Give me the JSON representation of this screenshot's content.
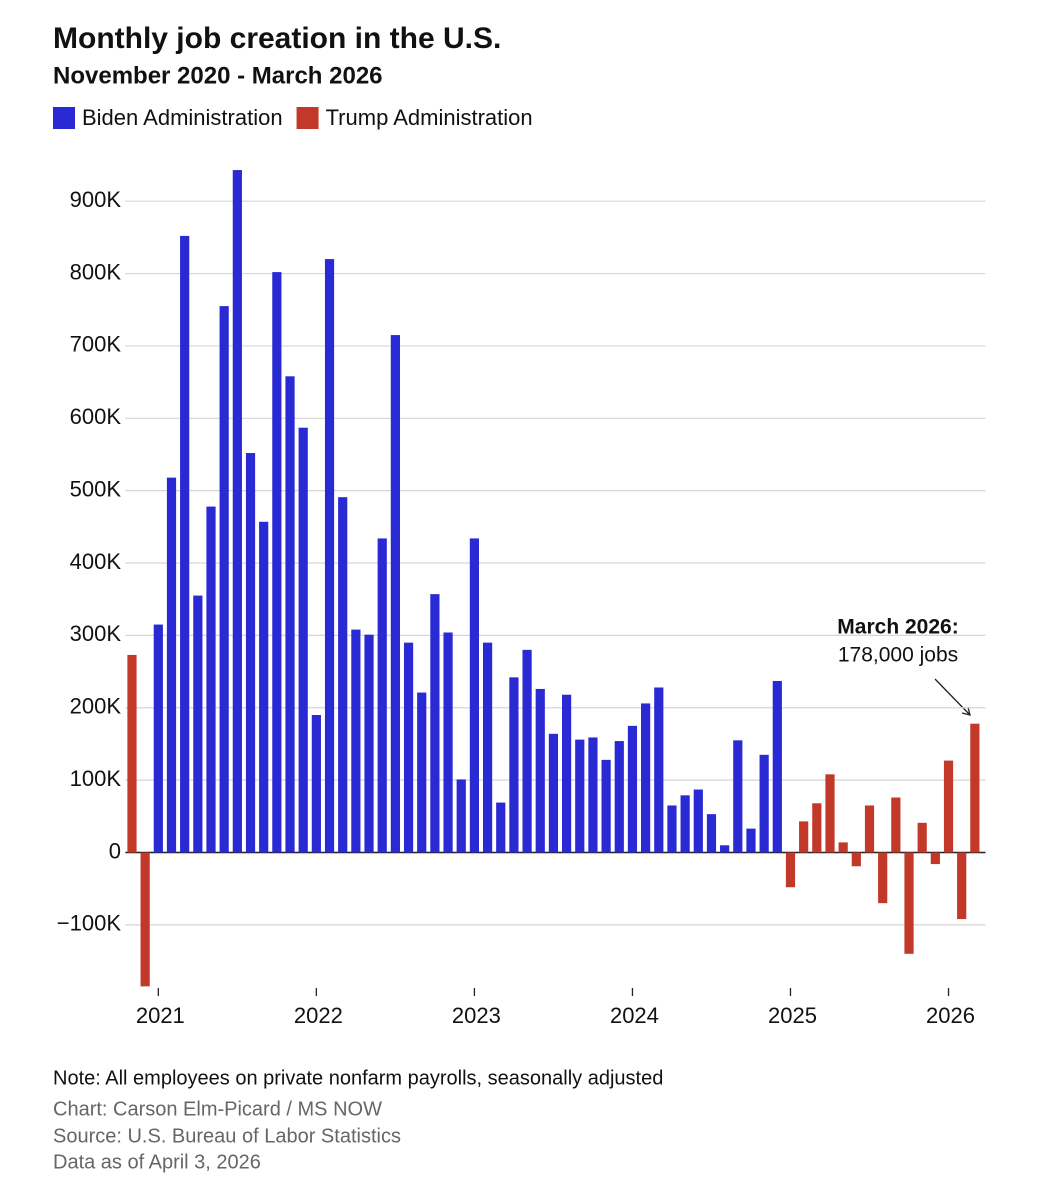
{
  "chart_data": {
    "type": "bar",
    "title": "Monthly job creation in the U.S.",
    "subtitle": "November 2020 - March 2026",
    "categories": [
      null,
      null,
      "2021",
      null,
      null,
      null,
      null,
      null,
      null,
      null,
      null,
      null,
      null,
      null,
      "2022",
      null,
      null,
      null,
      null,
      null,
      null,
      null,
      null,
      null,
      null,
      null,
      "2023",
      null,
      null,
      null,
      null,
      null,
      null,
      null,
      null,
      null,
      null,
      null,
      "2024",
      null,
      null,
      null,
      null,
      null,
      null,
      null,
      null,
      null,
      null,
      null,
      "2025",
      null,
      null,
      null,
      null,
      null,
      null,
      null,
      null,
      null,
      null,
      null,
      "2026",
      null,
      null
    ],
    "series": [
      {
        "name": "Biden Administration",
        "color": "#2a2ad4",
        "values": [
          null,
          null,
          315000,
          518000,
          852000,
          355000,
          478000,
          755000,
          943000,
          552000,
          457000,
          802000,
          658000,
          587000,
          190000,
          820000,
          491000,
          308000,
          301000,
          434000,
          715000,
          290000,
          221000,
          357000,
          304000,
          101000,
          434000,
          290000,
          69000,
          242000,
          280000,
          226000,
          164000,
          218000,
          156000,
          159000,
          128000,
          154000,
          175000,
          206000,
          228000,
          65000,
          79000,
          87000,
          53000,
          10000,
          155000,
          33000,
          135000,
          237000,
          null,
          null,
          null,
          null,
          null,
          null,
          null,
          null,
          null,
          null,
          null,
          null,
          null,
          null,
          null
        ]
      },
      {
        "name": "Trump Administration",
        "color": "#c2392a",
        "values": [
          273000,
          -185000,
          null,
          null,
          null,
          null,
          null,
          null,
          null,
          null,
          null,
          null,
          null,
          null,
          null,
          null,
          null,
          null,
          null,
          null,
          null,
          null,
          null,
          null,
          null,
          null,
          null,
          null,
          null,
          null,
          null,
          null,
          null,
          null,
          null,
          null,
          null,
          null,
          null,
          null,
          null,
          null,
          null,
          null,
          null,
          null,
          null,
          null,
          null,
          null,
          -48000,
          43000,
          68000,
          108000,
          14000,
          -19000,
          65000,
          -70000,
          76000,
          -140000,
          41000,
          -16000,
          127000,
          -92000,
          178000
        ]
      }
    ],
    "ylim": [
      -190000,
      950000
    ],
    "yticks": [
      {
        "value": -100000,
        "label": "−100K"
      },
      0,
      {
        "value": 100000,
        "label": "100K"
      },
      {
        "value": 200000,
        "label": "200K"
      },
      {
        "value": 300000,
        "label": "300K"
      },
      {
        "value": 400000,
        "label": "400K"
      },
      {
        "value": 500000,
        "label": "500K"
      },
      {
        "value": 600000,
        "label": "600K"
      },
      {
        "value": 700000,
        "label": "700K"
      },
      {
        "value": 800000,
        "label": "800K"
      },
      {
        "value": 900000,
        "label": "900K"
      }
    ],
    "grid": true,
    "annotation": {
      "title": "March 2026:",
      "text": "178,000 jobs"
    },
    "notes": [
      "Note: All employees on private nonfarm payrolls, seasonally adjusted",
      "Chart: Carson Elm-Picard / MS NOW",
      "Source:  U.S. Bureau of Labor Statistics",
      "Data as of April 3, 2026"
    ]
  }
}
